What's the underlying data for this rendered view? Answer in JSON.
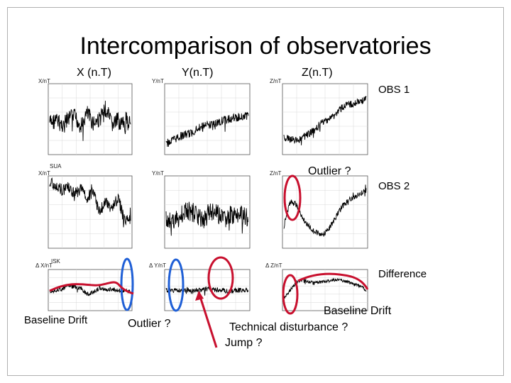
{
  "slide": {
    "title": "Intercomparison of observatories",
    "columns": [
      "X (n.T)",
      "Y(n.T)",
      "Z(n.T)"
    ],
    "rows": [
      "OBS 1",
      "OBS 2",
      "Difference"
    ],
    "station_labels": [
      "SUA",
      "ISK"
    ],
    "panel_axis_labels": [
      "X/nT",
      "Y/nT",
      "Z/nT",
      "X/nT",
      "Y/nT",
      "Z/nT",
      "Δ X/nT",
      "Δ Y/nT",
      "Δ Z/nT"
    ],
    "annotations": {
      "outlier_top": "Outlier ?",
      "baseline_drift_left": "Baseline Drift",
      "outlier_bottom": "Outlier ?",
      "technical": "Technical disturbance ?",
      "jump": "Jump ?",
      "baseline_drift_right": "Baseline Drift"
    },
    "colors": {
      "blue_marker": "#1f5fd6",
      "red_marker": "#c8102e",
      "trace": "#000000"
    }
  },
  "chart_data": [
    {
      "type": "line",
      "series": [
        {
          "name": "",
          "values": [
            0.55,
            0.52,
            0.58,
            0.5,
            0.46,
            0.6,
            0.42,
            0.55,
            0.5,
            0.35,
            0.58,
            0.52,
            0.6,
            0.48
          ]
        }
      ]
    },
    {
      "type": "line",
      "series": [
        {
          "name": "",
          "values": [
            0.85,
            0.8,
            0.75,
            0.72,
            0.7,
            0.62,
            0.6,
            0.58,
            0.55,
            0.52,
            0.5,
            0.48,
            0.46,
            0.45
          ]
        }
      ]
    },
    {
      "type": "line",
      "series": [
        {
          "name": "",
          "values": [
            0.75,
            0.78,
            0.8,
            0.76,
            0.7,
            0.65,
            0.55,
            0.5,
            0.45,
            0.35,
            0.3,
            0.28,
            0.25,
            0.22
          ]
        }
      ]
    },
    {
      "type": "line",
      "series": [
        {
          "name": "",
          "values": [
            0.1,
            0.12,
            0.2,
            0.15,
            0.25,
            0.18,
            0.3,
            0.22,
            0.5,
            0.35,
            0.45,
            0.3,
            0.62,
            0.58
          ]
        }
      ]
    },
    {
      "type": "line",
      "series": [
        {
          "name": "",
          "values": [
            0.6,
            0.58,
            0.62,
            0.45,
            0.5,
            0.55,
            0.6,
            0.48,
            0.52,
            0.6,
            0.56,
            0.5,
            0.55,
            0.6
          ]
        }
      ]
    },
    {
      "type": "line",
      "series": [
        {
          "name": "",
          "values": [
            0.7,
            0.35,
            0.4,
            0.6,
            0.7,
            0.78,
            0.82,
            0.75,
            0.6,
            0.45,
            0.35,
            0.3,
            0.25,
            0.2
          ]
        }
      ]
    },
    {
      "type": "line",
      "series": [
        {
          "name": "",
          "values": [
            0.55,
            0.5,
            0.48,
            0.4,
            0.42,
            0.45,
            0.6,
            0.55,
            0.45,
            0.5,
            0.48,
            0.5,
            0.52,
            0.55
          ]
        }
      ]
    },
    {
      "type": "line",
      "series": [
        {
          "name": "",
          "values": [
            0.5,
            0.5,
            0.5,
            0.5,
            0.52,
            0.5,
            0.5,
            0.48,
            0.5,
            0.5,
            0.55,
            0.5,
            0.5,
            0.52
          ]
        }
      ]
    },
    {
      "type": "line",
      "series": [
        {
          "name": "",
          "values": [
            0.7,
            0.5,
            0.3,
            0.25,
            0.3,
            0.32,
            0.3,
            0.28,
            0.25,
            0.26,
            0.3,
            0.35,
            0.4,
            0.5
          ]
        }
      ]
    }
  ]
}
